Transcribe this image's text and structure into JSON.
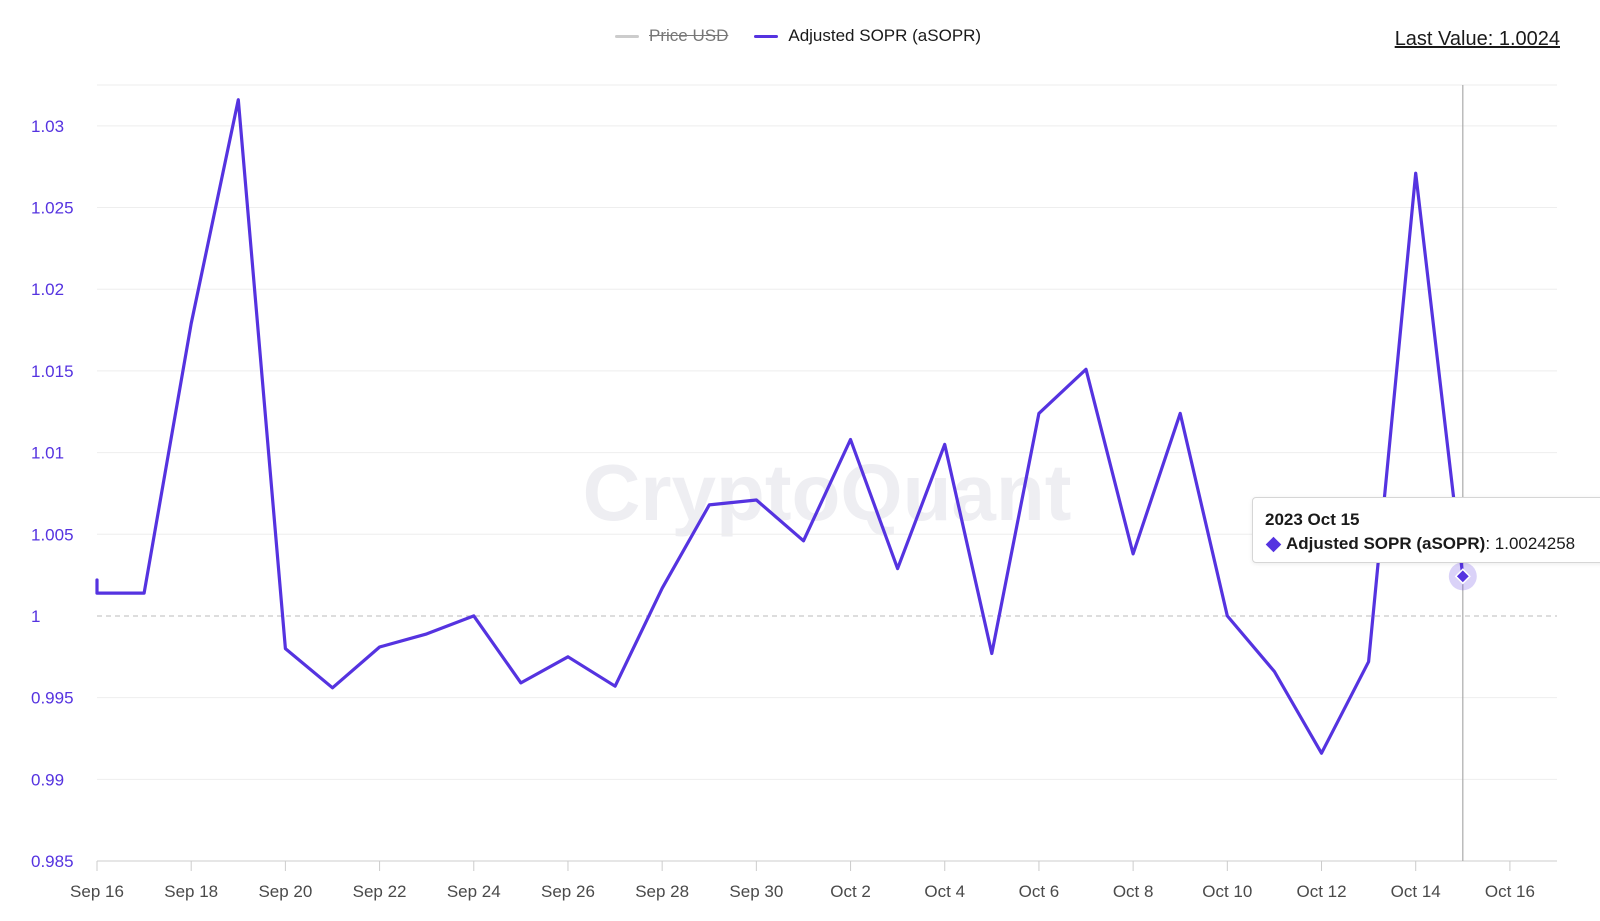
{
  "legend": {
    "price_label": "Price USD",
    "asopr_label": "Adjusted SOPR (aSOPR)"
  },
  "last_value_text": "Last Value: 1.0024",
  "watermark": "CryptoQuant",
  "tooltip": {
    "date": "2023 Oct 15",
    "series": "Adjusted SOPR (aSOPR)",
    "value": "1.0024258"
  },
  "colors": {
    "series": "#5533e0",
    "price": "#cccccc",
    "axis_text": "#5533e0",
    "grid": "#eeeeee",
    "baseline": "#bbbbbb"
  },
  "chart_data": {
    "type": "line",
    "series": [
      {
        "name": "Adjusted SOPR (aSOPR)",
        "x": [
          "2023-09-16",
          "2023-09-17",
          "2023-09-18",
          "2023-09-19",
          "2023-09-20",
          "2023-09-21",
          "2023-09-22",
          "2023-09-23",
          "2023-09-24",
          "2023-09-25",
          "2023-09-26",
          "2023-09-27",
          "2023-09-28",
          "2023-09-29",
          "2023-09-30",
          "2023-10-01",
          "2023-10-02",
          "2023-10-03",
          "2023-10-04",
          "2023-10-05",
          "2023-10-06",
          "2023-10-07",
          "2023-10-08",
          "2023-10-09",
          "2023-10-10",
          "2023-10-11",
          "2023-10-12",
          "2023-10-13",
          "2023-10-14",
          "2023-10-15"
        ],
        "values": [
          1.0014,
          1.0014,
          1.0179,
          1.0316,
          0.998,
          0.9956,
          0.9981,
          0.9989,
          1.0,
          0.9959,
          0.9975,
          0.9957,
          1.0017,
          1.0068,
          1.0071,
          1.0046,
          1.0108,
          1.0029,
          1.0105,
          0.9977,
          1.0124,
          1.0151,
          1.0038,
          1.0124,
          1.0,
          0.9966,
          0.9916,
          0.9972,
          1.0271,
          1.0024258
        ]
      },
      {
        "name": "Price USD",
        "hidden": true
      }
    ],
    "x_ticks": [
      "Sep 16",
      "Sep 18",
      "Sep 20",
      "Sep 22",
      "Sep 24",
      "Sep 26",
      "Sep 28",
      "Sep 30",
      "Oct 2",
      "Oct 4",
      "Oct 6",
      "Oct 8",
      "Oct 10",
      "Oct 12",
      "Oct 14",
      "Oct 16"
    ],
    "x_tick_dates": [
      "2023-09-16",
      "2023-09-18",
      "2023-09-20",
      "2023-09-22",
      "2023-09-24",
      "2023-09-26",
      "2023-09-28",
      "2023-09-30",
      "2023-10-02",
      "2023-10-04",
      "2023-10-06",
      "2023-10-08",
      "2023-10-10",
      "2023-10-12",
      "2023-10-14",
      "2023-10-16"
    ],
    "xlim": [
      "2023-09-16",
      "2023-10-17"
    ],
    "y_ticks": [
      "1.03",
      "1.025",
      "1.02",
      "1.015",
      "1.01",
      "1.005",
      "1",
      "0.995",
      "0.99",
      "0.985"
    ],
    "ylim": [
      0.985,
      1.0325
    ],
    "baseline": 1,
    "grid": true,
    "legend_position": "top-center",
    "highlight_date": "2023-10-15"
  }
}
